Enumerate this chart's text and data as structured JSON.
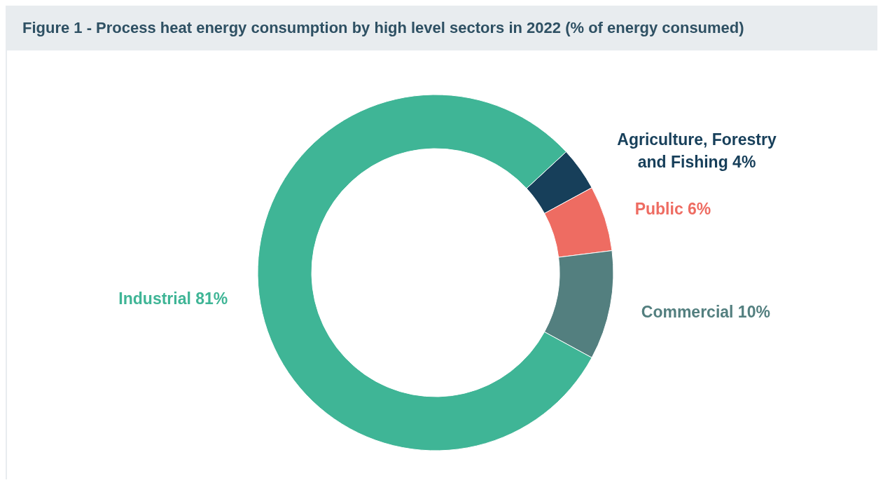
{
  "chart_data": {
    "type": "donut",
    "title": "Figure 1 - Process heat energy consumption by high level sectors in 2022 (% of energy consumed)",
    "categories": [
      "Agriculture, Forestry and Fishing",
      "Public",
      "Commercial",
      "Industrial"
    ],
    "values": [
      4,
      6,
      10,
      81
    ],
    "value_labels": [
      "4%",
      "6%",
      "10%",
      "81%"
    ],
    "colors": [
      "#173f5a",
      "#ee6c62",
      "#537f7f",
      "#3fb596"
    ],
    "legend": false
  }
}
